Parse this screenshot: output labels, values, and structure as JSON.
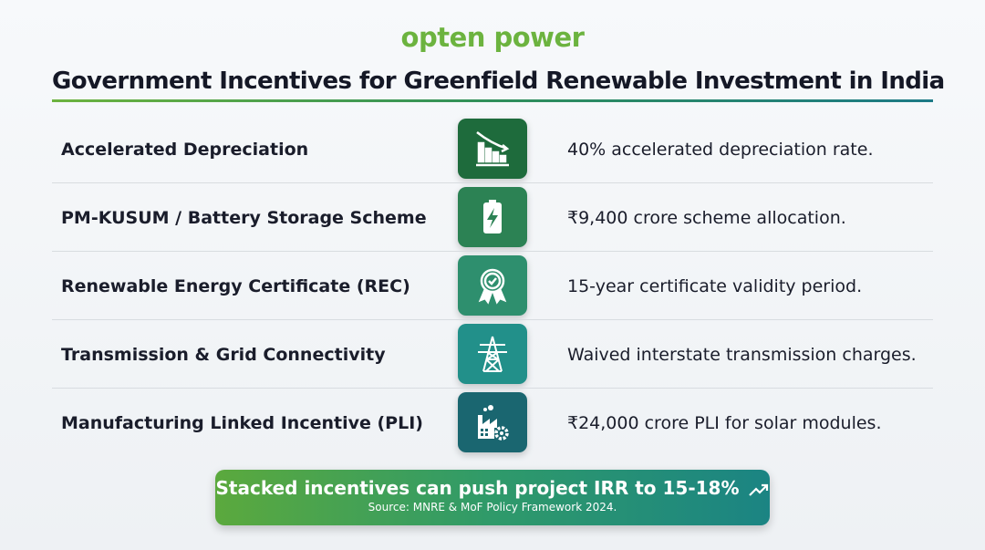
{
  "brand": {
    "logo": "opten power",
    "color": "#6cb33f"
  },
  "title": "Government Incentives for Greenfield Renewable Investment in India",
  "rows": [
    {
      "name": "Accelerated Depreciation",
      "value": "40% accelerated depreciation rate.",
      "icon": "declining-bar-chart-icon",
      "color": "#1e6b3c"
    },
    {
      "name": "PM-KUSUM / Battery Storage Scheme",
      "value": "₹9,400 crore scheme allocation.",
      "icon": "battery-bolt-icon",
      "color": "#2c8254"
    },
    {
      "name": "Renewable Energy Certificate (REC)",
      "value": "15-year certificate validity period.",
      "icon": "award-badge-icon",
      "color": "#2e8f6e"
    },
    {
      "name": "Transmission & Grid Connectivity",
      "value": "Waived interstate transmission charges.",
      "icon": "transmission-tower-icon",
      "color": "#22908a"
    },
    {
      "name": "Manufacturing Linked Incentive (PLI)",
      "value": "₹24,000 crore PLI for solar modules.",
      "icon": "factory-gear-icon",
      "color": "#1a6670"
    }
  ],
  "banner": {
    "headline": "Stacked incentives can push project IRR to 15-18%",
    "icon": "trending-up-icon",
    "source": "Source: MNRE & MoF Policy Framework 2024."
  }
}
